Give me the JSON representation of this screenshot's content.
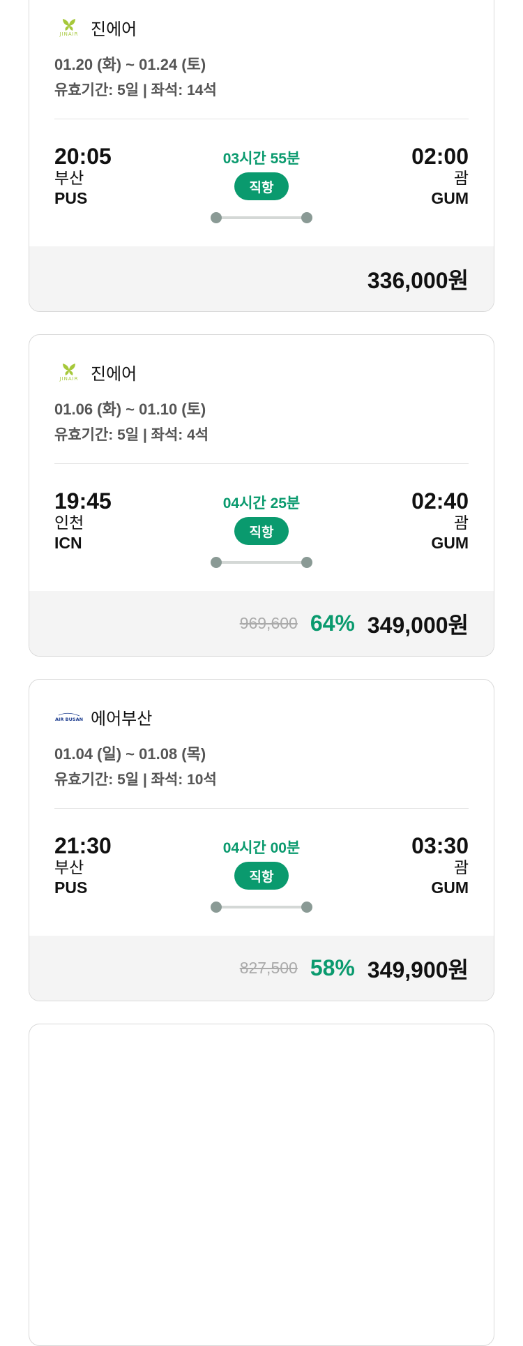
{
  "flights": [
    {
      "airline": "진에어",
      "logo": "jinair-logo",
      "dates": "01.20 (화) ~ 01.24 (토)",
      "validity": "유효기간: 5일 | 좌석: 14석",
      "dep_time": "20:05",
      "dep_city": "부산",
      "dep_code": "PUS",
      "duration": "03시간 55분",
      "type": "직항",
      "arr_time": "02:00",
      "arr_city": "괌",
      "arr_code": "GUM",
      "original_price": "",
      "discount": "",
      "price": "336,000원"
    },
    {
      "airline": "진에어",
      "logo": "jinair-logo",
      "dates": "01.06 (화) ~ 01.10 (토)",
      "validity": "유효기간: 5일 | 좌석: 4석",
      "dep_time": "19:45",
      "dep_city": "인천",
      "dep_code": "ICN",
      "duration": "04시간 25분",
      "type": "직항",
      "arr_time": "02:40",
      "arr_city": "괌",
      "arr_code": "GUM",
      "original_price": "969,600",
      "discount": "64%",
      "price": "349,000원"
    },
    {
      "airline": "에어부산",
      "logo": "airbusan-logo",
      "logo_text": "AIR BUSAN",
      "dates": "01.04 (일) ~ 01.08 (목)",
      "validity": "유효기간: 5일 | 좌석: 10석",
      "dep_time": "21:30",
      "dep_city": "부산",
      "dep_code": "PUS",
      "duration": "04시간 00분",
      "type": "직항",
      "arr_time": "03:30",
      "arr_city": "괌",
      "arr_code": "GUM",
      "original_price": "827,500",
      "discount": "58%",
      "price": "349,900원"
    }
  ],
  "colors": {
    "accent": "#0a9a6e",
    "jinair": "#a6c83a",
    "airbusan": "#1d3d8f"
  }
}
